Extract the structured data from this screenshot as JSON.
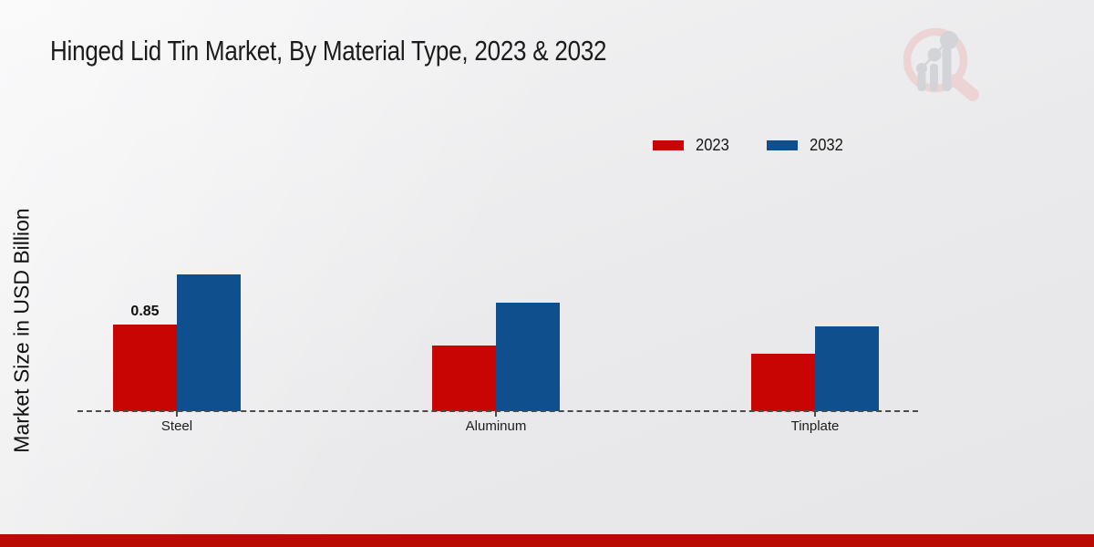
{
  "page": {
    "title": "Hinged Lid Tin Market, By Material Type, 2023 & 2032",
    "ylabel": "Market Size in USD Billion",
    "footer_bar_color": "#b90b02",
    "background_color": "#ebebed",
    "watermark_icon": "magnifier-bar-chart-logo"
  },
  "chart_data": {
    "type": "bar",
    "title": "Hinged Lid Tin Market, By Material Type, 2023 & 2032",
    "xlabel": "",
    "ylabel": "Market Size in USD Billion",
    "categories": [
      "Steel",
      "Aluminum",
      "Tinplate"
    ],
    "series": [
      {
        "name": "2023",
        "color": "#c80502",
        "values": [
          0.85,
          0.64,
          0.56
        ]
      },
      {
        "name": "2032",
        "color": "#104f8e",
        "values": [
          1.34,
          1.06,
          0.83
        ]
      }
    ],
    "annotations": [
      {
        "series": "2023",
        "category": "Steel",
        "text": "0.85"
      }
    ],
    "ylim": [
      0,
      1.5
    ],
    "grid": false,
    "y_axis_ticks_visible": false,
    "baseline_style": "dashed",
    "legend_position": "top-right"
  }
}
